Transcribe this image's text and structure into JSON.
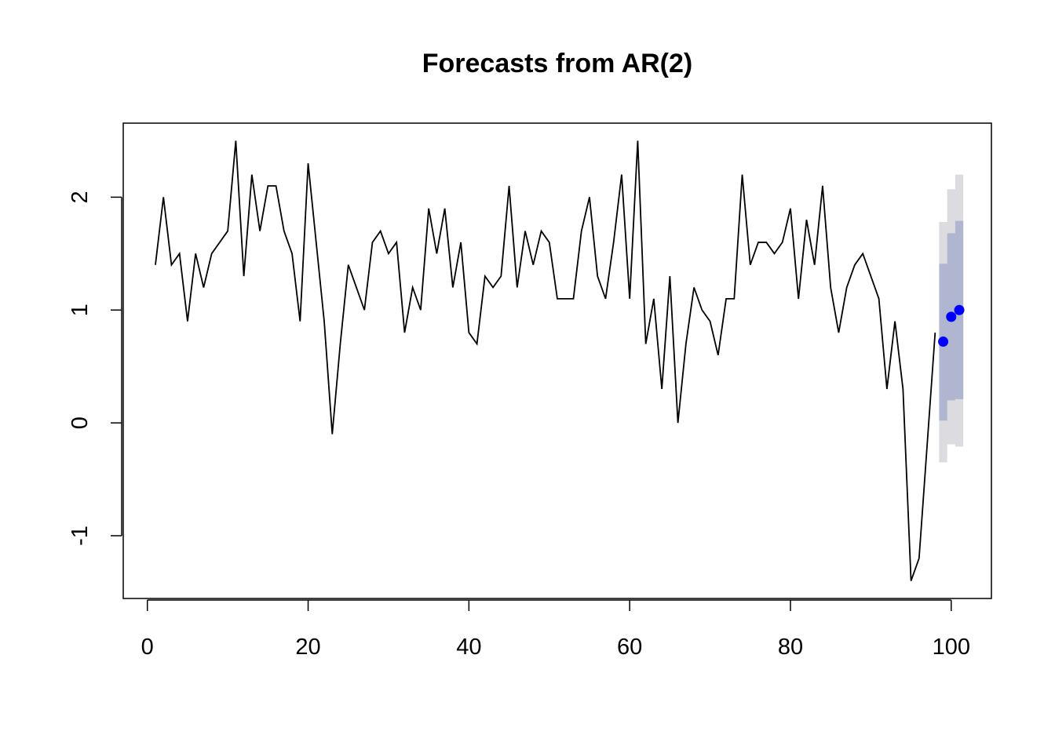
{
  "chart_data": {
    "type": "line",
    "title": "Forecasts from AR(2)",
    "xlabel": "",
    "ylabel": "",
    "xlim": [
      1,
      101
    ],
    "ylim": [
      -1.4,
      2.5
    ],
    "grid": false,
    "x_ticks": [
      0,
      20,
      40,
      60,
      80,
      100
    ],
    "y_ticks": [
      -1,
      0,
      1,
      2
    ],
    "x_tick_labels": [
      "0",
      "20",
      "40",
      "60",
      "80",
      "100"
    ],
    "y_tick_labels": [
      "-1",
      "0",
      "1",
      "2"
    ],
    "series": [
      {
        "x_start": 1,
        "values": [
          1.4,
          2.0,
          1.4,
          1.5,
          0.9,
          1.5,
          1.2,
          1.5,
          1.6,
          1.7,
          2.5,
          1.3,
          2.2,
          1.7,
          2.1,
          2.1,
          1.7,
          1.5,
          0.9,
          2.3,
          1.6,
          0.9,
          -0.1,
          0.7,
          1.4,
          1.2,
          1.0,
          1.6,
          1.7,
          1.5,
          1.6,
          0.8,
          1.2,
          1.0,
          1.9,
          1.5,
          1.9,
          1.2,
          1.6,
          0.8,
          0.7,
          1.3,
          1.2,
          1.3,
          2.1,
          1.2,
          1.7,
          1.4,
          1.7,
          1.6,
          1.1,
          1.1,
          1.1,
          1.7,
          2.0,
          1.3,
          1.1,
          1.6,
          2.2,
          1.1,
          2.5,
          0.7,
          1.1,
          0.3,
          1.3,
          0.0,
          0.7,
          1.2,
          1.0,
          0.9,
          0.6,
          1.1,
          1.1,
          2.2,
          1.4,
          1.6,
          1.6,
          1.5,
          1.6,
          1.9,
          1.1,
          1.8,
          1.4,
          2.1,
          1.2,
          0.8,
          1.2,
          1.4,
          1.5,
          1.3,
          1.1,
          0.3,
          0.9,
          0.3,
          -1.4,
          -1.2,
          -0.2,
          0.8
        ],
        "color": "#000000"
      }
    ],
    "forecast": {
      "x": [
        99,
        100,
        101
      ],
      "mean": [
        0.72,
        0.94,
        1.0
      ],
      "lower_80": [
        0.02,
        0.2,
        0.21
      ],
      "upper_80": [
        1.41,
        1.68,
        1.79
      ],
      "lower_95": [
        -0.35,
        -0.19,
        -0.21
      ],
      "upper_95": [
        1.78,
        2.07,
        2.2
      ],
      "mean_color": "#0000ff",
      "band_80_color": "#b0b5d0",
      "band_95_color": "#dbdbe0"
    }
  }
}
